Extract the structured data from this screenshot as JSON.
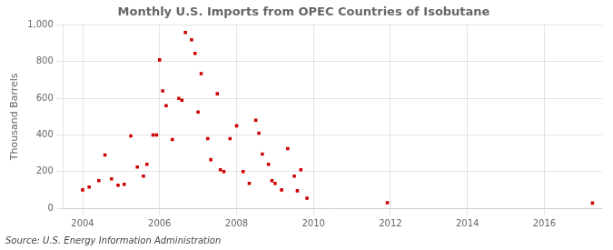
{
  "chart_data": {
    "type": "scatter",
    "title": "Monthly U.S. Imports from OPEC Countries of Isobutane",
    "ylabel": "Thousand Barrels",
    "annotations": [
      "Source: U.S. Energy Information Administration"
    ],
    "color": "#cc0000",
    "marker": "square",
    "grid": true,
    "xlim": [
      2003.5,
      2017.5
    ],
    "xticks": [
      2004,
      2006,
      2008,
      2010,
      2012,
      2014,
      2016
    ],
    "ylim": [
      0,
      1000
    ],
    "yticks": [
      0,
      200,
      400,
      600,
      800,
      {
        "value": 1000,
        "label": "1,000"
      }
    ],
    "x": [
      2004.0,
      2004.17,
      2004.42,
      2004.58,
      2004.75,
      2004.92,
      2005.08,
      2005.25,
      2005.42,
      2005.58,
      2005.67,
      2005.83,
      2005.92,
      2006.0,
      2006.08,
      2006.17,
      2006.33,
      2006.5,
      2006.58,
      2006.67,
      2006.83,
      2006.92,
      2007.0,
      2007.08,
      2007.25,
      2007.33,
      2007.5,
      2007.58,
      2007.67,
      2007.83,
      2008.0,
      2008.17,
      2008.33,
      2008.5,
      2008.58,
      2008.67,
      2008.83,
      2008.92,
      2009.0,
      2009.17,
      2009.33,
      2009.5,
      2009.58,
      2009.67,
      2009.83,
      2011.92,
      2017.25
    ],
    "values": [
      100,
      115,
      150,
      290,
      160,
      125,
      130,
      395,
      225,
      175,
      240,
      400,
      400,
      810,
      640,
      560,
      375,
      600,
      590,
      960,
      920,
      845,
      525,
      735,
      380,
      265,
      625,
      210,
      200,
      380,
      450,
      200,
      135,
      480,
      410,
      295,
      240,
      150,
      135,
      100,
      325,
      175,
      95,
      210,
      55,
      30,
      28
    ]
  }
}
